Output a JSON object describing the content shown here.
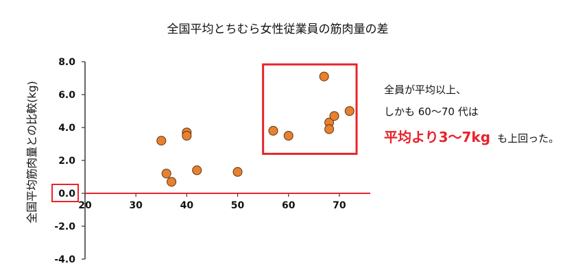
{
  "chart_data": {
    "type": "scatter",
    "title": "全国平均とちむら女性従業員の筋肉量の差",
    "xlabel": "",
    "ylabel": "全国平均筋肉量との比較(kg)",
    "xlim": [
      20,
      75
    ],
    "ylim": [
      -4.0,
      8.0
    ],
    "x_ticks": [
      "20",
      "30",
      "40",
      "50",
      "60",
      "70"
    ],
    "y_ticks": [
      "8.0",
      "6.0",
      "4.0",
      "2.0",
      "0.0",
      "-2.0",
      "-4.0"
    ],
    "grid": false,
    "points": [
      {
        "x": 35,
        "y": 3.2
      },
      {
        "x": 36,
        "y": 1.2
      },
      {
        "x": 37,
        "y": 0.7
      },
      {
        "x": 40,
        "y": 3.7
      },
      {
        "x": 40,
        "y": 3.5
      },
      {
        "x": 42,
        "y": 1.4
      },
      {
        "x": 50,
        "y": 1.3
      },
      {
        "x": 57,
        "y": 3.8
      },
      {
        "x": 60,
        "y": 3.5
      },
      {
        "x": 67,
        "y": 7.1
      },
      {
        "x": 68,
        "y": 4.3
      },
      {
        "x": 68,
        "y": 3.9
      },
      {
        "x": 69,
        "y": 4.7
      },
      {
        "x": 72,
        "y": 5.0
      }
    ],
    "highlight_box": {
      "x_range": [
        55,
        75
      ],
      "y_range": [
        2.4,
        8.0
      ]
    }
  },
  "annotation": {
    "line1": "全員が平均以上、",
    "line2": "しかも 60〜70 代は",
    "line3_highlight": "平均より3〜7kg",
    "line3_rest": "も上回った。"
  },
  "colors": {
    "point_fill": "#e8812f",
    "point_stroke": "#5a3312",
    "zero_line": "#e8232a",
    "highlight_box": "#e8232a",
    "axis": "#333333",
    "highlight_text": "#e8232a"
  }
}
